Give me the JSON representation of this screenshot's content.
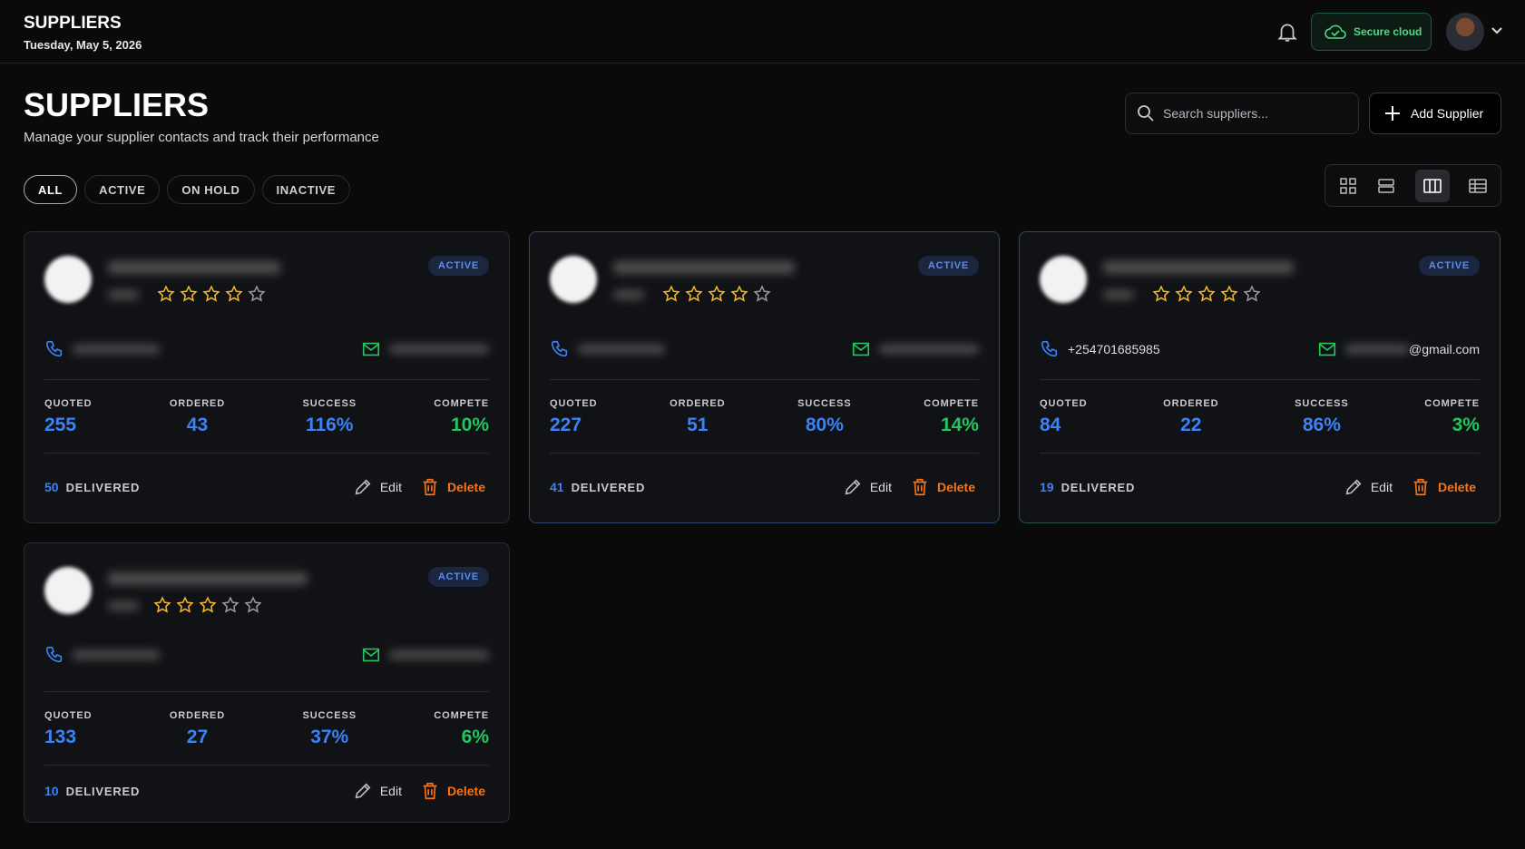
{
  "header": {
    "title": "SUPPLIERS",
    "date": "Tuesday, May 5, 2026",
    "secure": "Secure cloud"
  },
  "page": {
    "title": "SUPPLIERS",
    "subtitle": "Manage your supplier contacts and track their performance",
    "search_placeholder": "Search suppliers...",
    "add_button": "Add Supplier"
  },
  "filters": [
    "ALL",
    "ACTIVE",
    "ON HOLD",
    "INACTIVE"
  ],
  "stat_labels": [
    "QUOTED",
    "ORDERED",
    "SUCCESS",
    "COMPETE"
  ],
  "delivered_label": "DELIVERED",
  "edit": "Edit",
  "delete": "Delete",
  "suppliers": [
    {
      "status": "ACTIVE",
      "rating": 4,
      "stats": [
        "255",
        "43",
        "116%",
        "10%"
      ],
      "delivered": "50"
    },
    {
      "status": "ACTIVE",
      "rating": 4,
      "stats": [
        "227",
        "51",
        "80%",
        "14%"
      ],
      "delivered": "41"
    },
    {
      "status": "ACTIVE",
      "rating": 4,
      "phone": "+254701685985",
      "email": "@gmail.com",
      "stats": [
        "84",
        "22",
        "86%",
        "3%"
      ],
      "delivered": "19"
    },
    {
      "status": "ACTIVE",
      "rating": 3,
      "stats": [
        "133",
        "27",
        "37%",
        "6%"
      ],
      "delivered": "10"
    }
  ]
}
